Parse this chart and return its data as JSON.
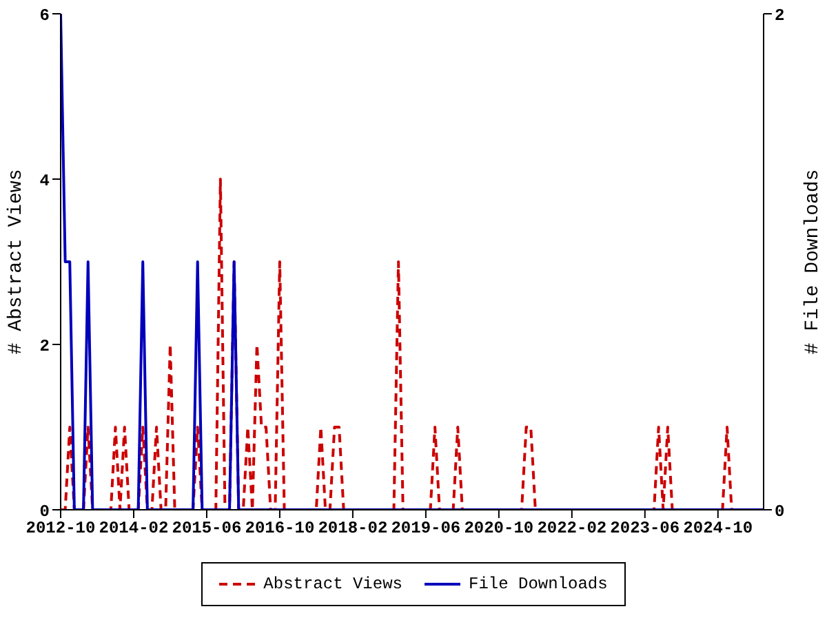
{
  "chart_data": {
    "type": "line",
    "ylabel": "# Abstract Views",
    "y2label": "# File Downloads",
    "x": [
      "2012-10",
      "2012-11",
      "2012-12",
      "2013-01",
      "2013-02",
      "2013-03",
      "2013-04",
      "2013-05",
      "2013-06",
      "2013-07",
      "2013-08",
      "2013-09",
      "2013-10",
      "2013-11",
      "2013-12",
      "2014-01",
      "2014-02",
      "2014-03",
      "2014-04",
      "2014-05",
      "2014-06",
      "2014-07",
      "2014-08",
      "2014-09",
      "2014-10",
      "2014-11",
      "2014-12",
      "2015-01",
      "2015-02",
      "2015-03",
      "2015-04",
      "2015-05",
      "2015-06",
      "2015-07",
      "2015-08",
      "2015-09",
      "2015-10",
      "2015-11",
      "2015-12",
      "2016-01",
      "2016-02",
      "2016-03",
      "2016-04",
      "2016-05",
      "2016-06",
      "2016-07",
      "2016-08",
      "2016-09",
      "2016-10",
      "2016-11",
      "2016-12",
      "2017-01",
      "2017-02",
      "2017-03",
      "2017-04",
      "2017-05",
      "2017-06",
      "2017-07",
      "2017-08",
      "2017-09",
      "2017-10",
      "2017-11",
      "2017-12",
      "2018-01",
      "2018-02",
      "2018-03",
      "2018-04",
      "2018-05",
      "2018-06",
      "2018-07",
      "2018-08",
      "2018-09",
      "2018-10",
      "2018-11",
      "2018-12",
      "2019-01",
      "2019-02",
      "2019-03",
      "2019-04",
      "2019-05",
      "2019-06",
      "2019-07",
      "2019-08",
      "2019-09",
      "2019-10",
      "2019-11",
      "2019-12",
      "2020-01",
      "2020-02",
      "2020-03",
      "2020-04",
      "2020-05",
      "2020-06",
      "2020-07",
      "2020-08",
      "2020-09",
      "2020-10",
      "2020-11",
      "2020-12",
      "2021-01",
      "2021-02",
      "2021-03",
      "2021-04",
      "2021-05",
      "2021-06",
      "2021-07",
      "2021-08",
      "2021-09",
      "2021-10",
      "2021-11",
      "2021-12",
      "2022-01",
      "2022-02",
      "2022-03",
      "2022-04",
      "2022-05",
      "2022-06",
      "2022-07",
      "2022-08",
      "2022-09",
      "2022-10",
      "2022-11",
      "2022-12",
      "2023-01",
      "2023-02",
      "2023-03",
      "2023-04",
      "2023-05",
      "2023-06",
      "2023-07",
      "2023-08",
      "2023-09",
      "2023-10",
      "2023-11",
      "2023-12",
      "2024-01",
      "2024-02",
      "2024-03",
      "2024-04",
      "2024-05",
      "2024-06",
      "2024-07",
      "2024-08",
      "2024-09",
      "2024-10",
      "2024-11",
      "2024-12",
      "2025-01",
      "2025-02",
      "2025-03",
      "2025-04",
      "2025-05",
      "2025-06",
      "2025-07",
      "2025-08"
    ],
    "series": [
      {
        "name": "Abstract Views",
        "color": "#cc0000",
        "line_style": "dashed",
        "values": [
          0,
          0,
          1,
          0,
          0,
          0,
          1,
          0,
          0,
          0,
          0,
          0,
          1,
          0,
          1,
          0,
          0,
          0,
          1,
          0,
          0,
          1,
          0,
          0,
          2,
          0,
          0,
          0,
          0,
          0,
          1,
          0,
          0,
          0,
          0,
          4,
          0,
          0,
          3,
          0,
          0,
          1,
          0,
          2,
          1,
          1,
          0,
          0,
          3,
          0,
          0,
          0,
          0,
          0,
          0,
          0,
          0,
          1,
          0,
          0,
          1,
          1,
          0,
          0,
          0,
          0,
          0,
          0,
          0,
          0,
          0,
          0,
          0,
          0,
          3,
          0,
          0,
          0,
          0,
          0,
          0,
          0,
          1,
          0,
          0,
          0,
          0,
          1,
          0,
          0,
          0,
          0,
          0,
          0,
          0,
          0,
          0,
          0,
          0,
          0,
          0,
          0,
          1,
          1,
          0,
          0,
          0,
          0,
          0,
          0,
          0,
          0,
          0,
          0,
          0,
          0,
          0,
          0,
          0,
          0,
          0,
          0,
          0,
          0,
          0,
          0,
          0,
          0,
          0,
          0,
          0,
          1,
          0,
          1,
          0,
          0,
          0,
          0,
          0,
          0,
          0,
          0,
          0,
          0,
          0,
          0,
          1,
          0,
          0,
          0,
          0,
          null,
          null,
          null,
          null
        ]
      },
      {
        "name": "File Downloads",
        "color": "#0000bb",
        "line_style": "solid",
        "axis": "y2",
        "values": [
          2,
          1,
          1,
          0,
          0,
          0,
          1,
          0,
          0,
          0,
          0,
          0,
          0,
          0,
          0,
          0,
          0,
          0,
          1,
          0,
          0,
          0,
          0,
          0,
          0,
          0,
          0,
          0,
          0,
          0,
          1,
          0,
          0,
          0,
          0,
          0,
          0,
          0,
          1,
          0,
          0,
          0,
          0,
          0,
          0,
          0,
          0,
          0,
          0,
          0,
          0,
          0,
          0,
          0,
          0,
          0,
          0,
          0,
          0,
          0,
          0,
          0,
          0,
          0,
          0,
          0,
          0,
          0,
          0,
          0,
          0,
          0,
          0,
          0,
          0,
          0,
          0,
          0,
          0,
          0,
          0,
          0,
          0,
          0,
          0,
          0,
          0,
          0,
          0,
          0,
          0,
          0,
          0,
          0,
          0,
          0,
          0,
          0,
          0,
          0,
          0,
          0,
          0,
          0,
          0,
          0,
          0,
          0,
          0,
          0,
          0,
          0,
          0,
          0,
          0,
          0,
          0,
          0,
          0,
          0,
          0,
          0,
          0,
          0,
          0,
          0,
          0,
          0,
          0,
          0,
          0,
          0,
          0,
          0,
          0,
          0,
          0,
          0,
          0,
          0,
          0,
          0,
          0,
          0,
          0,
          0,
          0,
          0,
          0,
          0,
          0,
          0,
          0,
          0,
          0
        ]
      }
    ],
    "xlim": [
      "2012-10",
      "2025-08"
    ],
    "xticks": [
      "2012-10",
      "2014-02",
      "2015-06",
      "2016-10",
      "2018-02",
      "2019-06",
      "2020-10",
      "2022-02",
      "2023-06",
      "2024-10"
    ],
    "ylim": [
      0,
      6
    ],
    "yticks": [
      0,
      2,
      4,
      6
    ],
    "y2lim": [
      0,
      2
    ],
    "y2ticks": [
      0,
      2
    ],
    "grid": false,
    "legend": "bottom",
    "marker": "none"
  }
}
